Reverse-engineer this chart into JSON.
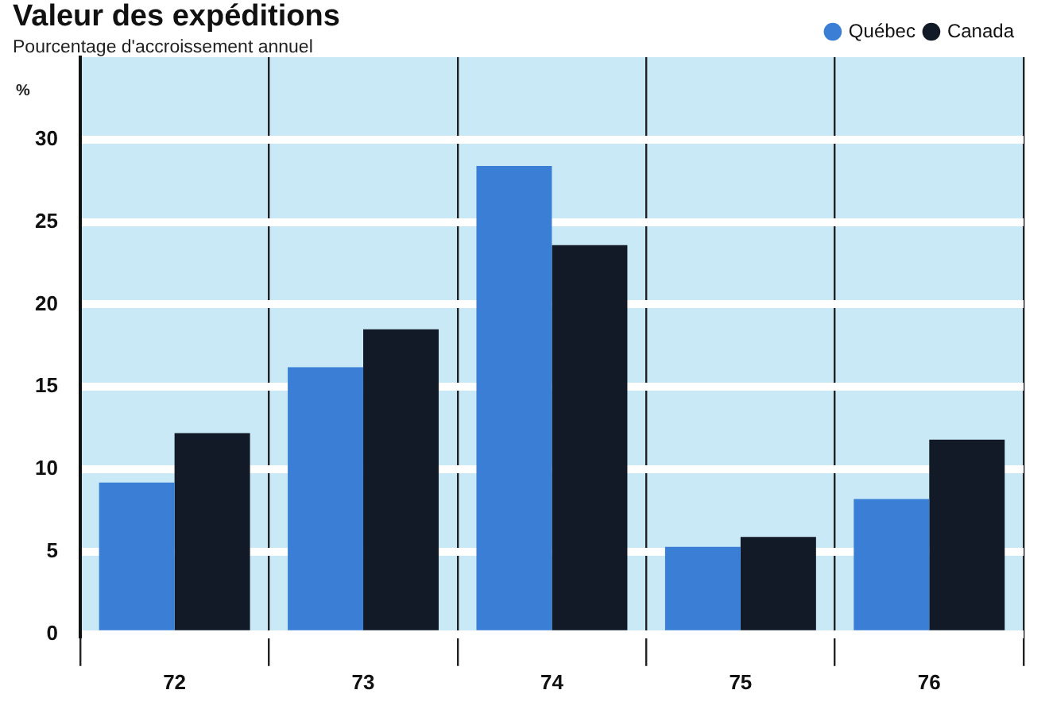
{
  "chart_data": {
    "type": "bar",
    "title": "Valeur des expéditions",
    "subtitle": "Pourcentage d'accroissement annuel",
    "ylabel": "%",
    "categories": [
      "72",
      "73",
      "74",
      "75",
      "76"
    ],
    "series": [
      {
        "name": "Québec",
        "color": "#3a7fd5",
        "values": [
          9.2,
          16.2,
          28.4,
          5.3,
          8.2
        ]
      },
      {
        "name": "Canada",
        "color": "#111a26",
        "values": [
          12.2,
          18.5,
          23.6,
          5.9,
          11.8
        ]
      }
    ],
    "ylim": [
      0,
      35
    ],
    "yticks": [
      0,
      5,
      10,
      15,
      20,
      25,
      30
    ],
    "grid": true,
    "legend": "top right"
  }
}
